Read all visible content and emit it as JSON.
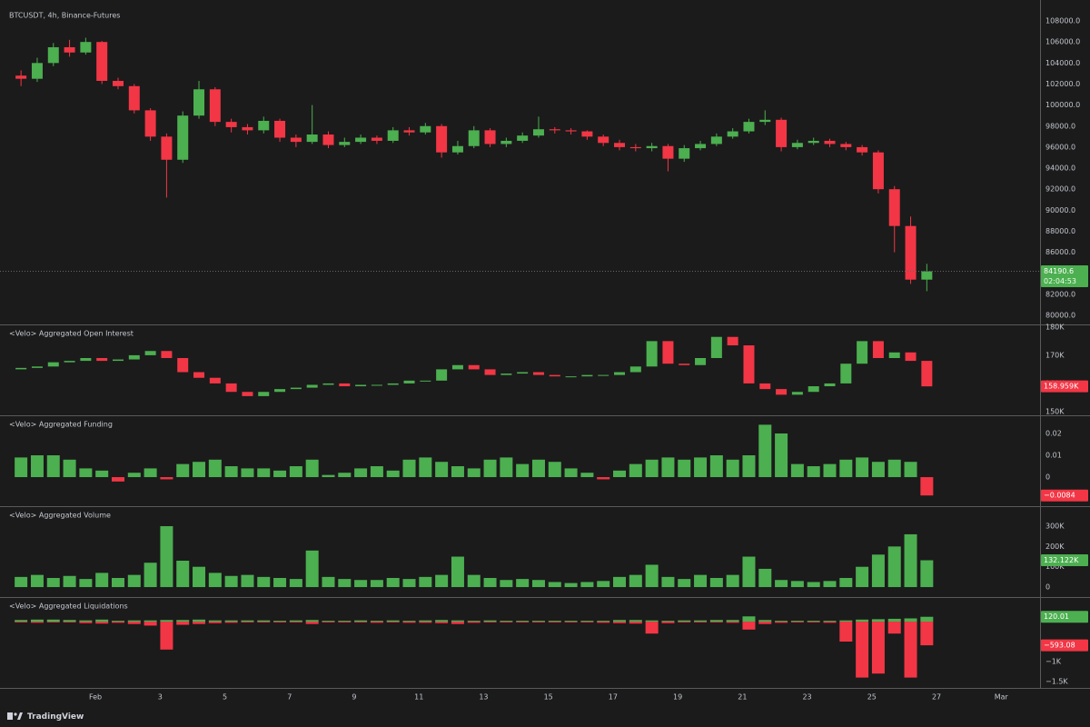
{
  "chart_data": [
    {
      "type": "candlestick",
      "title": "BTCUSDT, 4h, Binance-Futures",
      "up_color": "#4caf50",
      "down_color": "#f23645",
      "countdown": "02:04:53",
      "x": [
        -1.3,
        -0.8,
        -0.3,
        0.2,
        0.7,
        1.2,
        1.7,
        2.2,
        2.7,
        3.2,
        3.7,
        4.2,
        4.7,
        5.2,
        5.7,
        6.2,
        6.7,
        7.2,
        7.7,
        8.2,
        8.7,
        9.2,
        9.7,
        10.2,
        10.7,
        11.2,
        11.7,
        12.2,
        12.7,
        13.2,
        13.7,
        14.2,
        14.7,
        15.2,
        15.7,
        16.2,
        16.7,
        17.2,
        17.7,
        18.2,
        18.7,
        19.2,
        19.7,
        20.2,
        20.7,
        21.2,
        21.7,
        22.2,
        22.7,
        23.2,
        23.7,
        24.2,
        24.7,
        25.2,
        25.7,
        26.2,
        26.7
      ],
      "xlim": [
        -1.95,
        30.2
      ],
      "xticks": [
        {
          "value": 1,
          "label": "Feb"
        },
        3,
        5,
        7,
        9,
        11,
        13,
        15,
        17,
        19,
        21,
        23,
        25,
        27,
        {
          "value": 29,
          "label": "Mar"
        }
      ],
      "open": [
        102800,
        102500,
        104000,
        105500,
        105000,
        106000,
        102300,
        101800,
        99500,
        97000,
        94800,
        99000,
        101500,
        98400,
        97900,
        97600,
        98500,
        96900,
        96500,
        97200,
        96200,
        96500,
        96900,
        96600,
        97600,
        97400,
        98000,
        95500,
        96100,
        97600,
        96300,
        96600,
        97100,
        97700,
        97600,
        97500,
        97000,
        96400,
        96000,
        95900,
        96100,
        94900,
        95900,
        96300,
        97000,
        97500,
        98400,
        98600,
        96000,
        96400,
        96600,
        96300,
        96000,
        95500,
        92000,
        88500,
        83400
      ],
      "high": [
        103300,
        104500,
        105900,
        106200,
        106400,
        106100,
        102600,
        102000,
        99700,
        97300,
        99400,
        102300,
        101700,
        98700,
        98200,
        98900,
        98700,
        97200,
        100000,
        97500,
        96900,
        97200,
        97100,
        97900,
        97900,
        98300,
        98200,
        96600,
        98000,
        97800,
        96900,
        97400,
        98900,
        97900,
        97800,
        97600,
        97200,
        96700,
        96300,
        96400,
        96300,
        96200,
        96600,
        97300,
        97800,
        98700,
        99500,
        98800,
        96700,
        96900,
        96800,
        96500,
        96200,
        95700,
        92300,
        89400,
        84900
      ],
      "low": [
        101800,
        102200,
        103700,
        104600,
        104800,
        102000,
        101500,
        99200,
        96600,
        91200,
        94500,
        98700,
        98000,
        97400,
        97200,
        97300,
        96500,
        96000,
        96300,
        95900,
        96000,
        96300,
        96300,
        96400,
        97100,
        97200,
        95000,
        95300,
        95900,
        96000,
        96000,
        96400,
        96900,
        97300,
        97200,
        96700,
        96100,
        95700,
        95600,
        95600,
        93700,
        94600,
        95700,
        96100,
        96800,
        97300,
        98100,
        95600,
        95800,
        96200,
        96000,
        95700,
        95200,
        91600,
        86000,
        83000,
        82300
      ],
      "close": [
        102500,
        104000,
        105500,
        105000,
        106000,
        102300,
        101800,
        99500,
        97000,
        94800,
        99000,
        101500,
        98400,
        97900,
        97600,
        98500,
        96900,
        96500,
        97200,
        96200,
        96500,
        96900,
        96600,
        97600,
        97400,
        98000,
        95500,
        96100,
        97600,
        96300,
        96600,
        97100,
        97700,
        97600,
        97500,
        97000,
        96400,
        96000,
        95900,
        96100,
        94900,
        95900,
        96300,
        97000,
        97500,
        98400,
        98600,
        96000,
        96400,
        96600,
        96300,
        96000,
        95500,
        92000,
        88500,
        83400,
        84190.6
      ],
      "ylim": [
        79140,
        109300
      ],
      "yticks": [
        {
          "value": 80000,
          "label": "80000.0"
        },
        {
          "value": 82000,
          "label": "82000.0"
        },
        {
          "value": 84000,
          "label": "84000.0"
        },
        {
          "value": 86000,
          "label": "86000.0"
        },
        {
          "value": 88000,
          "label": "88000.0"
        },
        {
          "value": 90000,
          "label": "90000.0"
        },
        {
          "value": 92000,
          "label": "92000.0"
        },
        {
          "value": 94000,
          "label": "94000.0"
        },
        {
          "value": 96000,
          "label": "96000.0"
        },
        {
          "value": 98000,
          "label": "98000.0"
        },
        {
          "value": 100000,
          "label": "100000.0"
        },
        {
          "value": 102000,
          "label": "102000.0"
        },
        {
          "value": 104000,
          "label": "104000.0"
        },
        {
          "value": 106000,
          "label": "106000.0"
        },
        {
          "value": 108000,
          "label": "108000.0"
        }
      ]
    },
    {
      "type": "candlestick",
      "title": "<Velo> Aggregated Open Interest",
      "up_color": "#4caf50",
      "down_color": "#f23645",
      "last_label": "158.959K",
      "open": [
        165000,
        165500,
        166000,
        167500,
        168000,
        169000,
        168000,
        168500,
        170000,
        171500,
        169000,
        164000,
        162000,
        160000,
        157000,
        155500,
        157000,
        158000,
        158500,
        159500,
        160000,
        159000,
        159500,
        159500,
        160000,
        161000,
        161000,
        165000,
        166500,
        165000,
        163000,
        163500,
        164000,
        163000,
        162500,
        162500,
        163000,
        163000,
        164000,
        166000,
        175000,
        167000,
        166500,
        169000,
        176500,
        173500,
        160000,
        158000,
        156000,
        157000,
        159000,
        160000,
        167000,
        175000,
        169000,
        171000,
        168000
      ],
      "close": [
        165500,
        166000,
        167500,
        168000,
        169000,
        168000,
        168500,
        170000,
        171500,
        169000,
        164000,
        162000,
        160000,
        157000,
        155500,
        157000,
        158000,
        158500,
        159500,
        160000,
        159000,
        159500,
        159500,
        160000,
        161000,
        161000,
        165000,
        166500,
        165000,
        163000,
        163500,
        164000,
        163000,
        162500,
        162500,
        163000,
        163000,
        164000,
        166000,
        175000,
        167000,
        166500,
        169000,
        176500,
        173500,
        160000,
        158000,
        156000,
        157000,
        159000,
        160000,
        167000,
        175000,
        169000,
        171000,
        168000,
        158959
      ],
      "ylim": [
        148700,
        180600
      ],
      "yticks": [
        {
          "value": 150000,
          "label": "150K"
        },
        {
          "value": 160000,
          "label": "160K"
        },
        {
          "value": 170000,
          "label": "170K"
        },
        {
          "value": 180000,
          "label": "180K"
        }
      ]
    },
    {
      "type": "bar",
      "title": "<Velo> Aggregated Funding",
      "color": "#4caf50",
      "negative_color": "#f23645",
      "last_label": "−0.0084",
      "values": [
        0.009,
        0.01,
        0.01,
        0.008,
        0.004,
        0.003,
        -0.002,
        0.002,
        0.004,
        -0.001,
        0.006,
        0.007,
        0.008,
        0.005,
        0.004,
        0.004,
        0.003,
        0.005,
        0.008,
        0.001,
        0.002,
        0.004,
        0.005,
        0.003,
        0.008,
        0.009,
        0.007,
        0.005,
        0.004,
        0.008,
        0.009,
        0.006,
        0.008,
        0.007,
        0.004,
        0.002,
        -0.001,
        0.003,
        0.006,
        0.008,
        0.009,
        0.008,
        0.009,
        0.01,
        0.008,
        0.01,
        0.024,
        0.02,
        0.006,
        0.005,
        0.006,
        0.008,
        0.009,
        0.007,
        0.008,
        0.007,
        -0.0084
      ],
      "ylim": [
        -0.0133,
        0.0279
      ],
      "yticks": [
        0,
        0.01,
        0.02
      ]
    },
    {
      "type": "bar",
      "title": "<Velo> Aggregated Volume",
      "color": "#4caf50",
      "last_label": "132.122K",
      "values": [
        50000,
        60000,
        45000,
        55000,
        40000,
        70000,
        45000,
        60000,
        120000,
        300000,
        130000,
        100000,
        70000,
        55000,
        60000,
        50000,
        45000,
        40000,
        180000,
        50000,
        40000,
        35000,
        35000,
        45000,
        40000,
        50000,
        60000,
        150000,
        60000,
        45000,
        35000,
        40000,
        35000,
        25000,
        20000,
        25000,
        30000,
        50000,
        60000,
        110000,
        50000,
        40000,
        60000,
        45000,
        60000,
        150000,
        90000,
        35000,
        30000,
        25000,
        30000,
        45000,
        100000,
        160000,
        200000,
        260000,
        132122
      ],
      "ylim": [
        -49000,
        394000
      ],
      "yticks": [
        0,
        {
          "value": 100000,
          "label": "100K"
        },
        {
          "value": 200000,
          "label": "200K"
        },
        {
          "value": 300000,
          "label": "300K"
        }
      ]
    },
    {
      "type": "bar",
      "title": "<Velo> Aggregated Liquidations",
      "series": [
        {
          "color": "#4caf50",
          "values": [
            40,
            50,
            50,
            40,
            30,
            50,
            20,
            30,
            30,
            40,
            40,
            50,
            30,
            30,
            30,
            30,
            20,
            30,
            40,
            20,
            20,
            30,
            20,
            30,
            20,
            30,
            40,
            30,
            20,
            30,
            20,
            20,
            20,
            20,
            20,
            20,
            20,
            40,
            40,
            30,
            20,
            30,
            30,
            40,
            40,
            130,
            40,
            20,
            20,
            20,
            20,
            30,
            50,
            60,
            70,
            80,
            120.01
          ]
        },
        {
          "color": "#f23645",
          "last_label": "−593.08",
          "values": [
            -20,
            -30,
            -20,
            -20,
            -40,
            -50,
            -30,
            -60,
            -100,
            -700,
            -80,
            -60,
            -40,
            -30,
            -20,
            -20,
            -20,
            -20,
            -60,
            -20,
            -20,
            -20,
            -30,
            -20,
            -30,
            -30,
            -40,
            -60,
            -30,
            -20,
            -20,
            -20,
            -20,
            -20,
            -20,
            -20,
            -30,
            -40,
            -50,
            -300,
            -40,
            -20,
            -20,
            -20,
            -30,
            -200,
            -60,
            -30,
            -20,
            -20,
            -30,
            -500,
            -1400,
            -1300,
            -300,
            -1400,
            -593.08
          ]
        }
      ],
      "ylim": [
        -1659,
        591
      ],
      "yticks": [
        {
          "value": -1500,
          "label": "−1.5K"
        },
        {
          "value": -1000,
          "label": "−1K"
        }
      ]
    }
  ],
  "footer": "TradingView"
}
